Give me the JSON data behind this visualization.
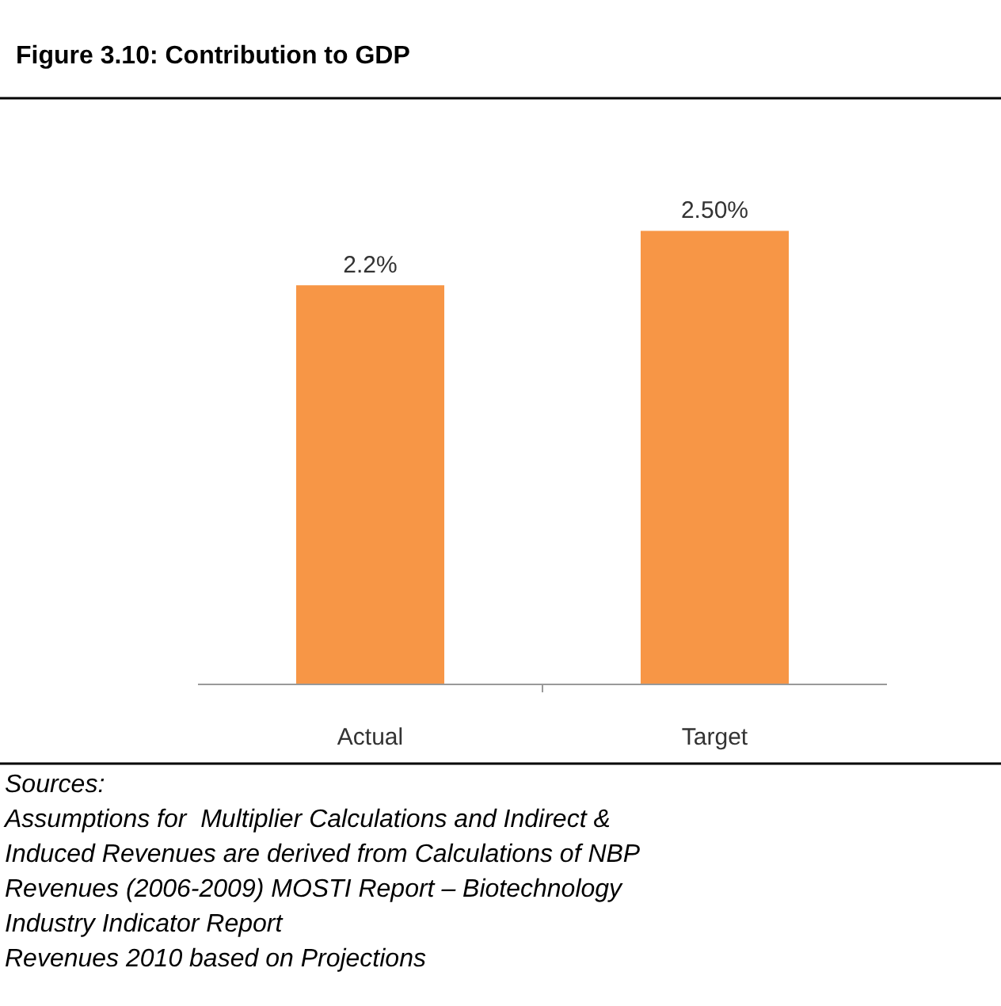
{
  "chart_data": {
    "type": "bar",
    "title": "Figure 3.10: Contribution to GDP",
    "categories": [
      "Actual",
      "Target"
    ],
    "values": [
      2.2,
      2.5
    ],
    "value_labels": [
      "2.2%",
      "2.50%"
    ],
    "color": "#f79646",
    "annotations": [
      "Sources:",
      "Assumptions for  Multiplier Calculations and Indirect & Induced Revenues are derived from Calculations of NBP Revenues (2006-2009) MOSTI Report – Biotechnology Industry Indicator Report",
      "Revenues 2010 based on Projections"
    ]
  }
}
